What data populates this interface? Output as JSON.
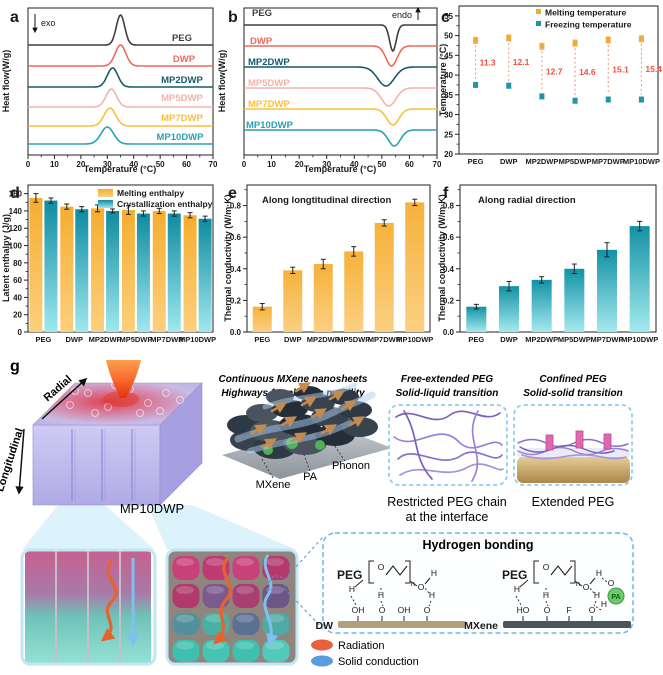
{
  "figure": {
    "letters": {
      "a": "a",
      "b": "b",
      "c": "c",
      "d": "d",
      "e": "e",
      "f": "f",
      "g": "g"
    }
  },
  "samples": [
    "PEG",
    "DWP",
    "MP2DWP",
    "MP5DWP",
    "MP7DWP",
    "MP10DWP"
  ],
  "sample_colors": {
    "PEG": "#3f3f3f",
    "DWP": "#ee6a58",
    "MP2DWP": "#175a6c",
    "MP5DWP": "#f5b2aa",
    "MP7DWP": "#f9bf3f",
    "MP10DWP": "#28a2b0"
  },
  "chart_data": [
    {
      "id": "a",
      "type": "line",
      "xlabel": "Temperature (°C)",
      "ylabel": "Heat flow(W/g)",
      "xlim": [
        0,
        70
      ],
      "x_ticks": [
        0,
        10,
        20,
        30,
        40,
        50,
        60,
        70
      ],
      "annotation": "exo",
      "annotation_arrow": "down",
      "peak_direction": "up",
      "note": "stacked DSC crystallization curves, exothermic peaks",
      "series": [
        {
          "name": "PEG",
          "color": "#3f3f3f",
          "peak_c": 35
        },
        {
          "name": "DWP",
          "color": "#ee6a58",
          "peak_c": 35
        },
        {
          "name": "MP2DWP",
          "color": "#175a6c",
          "peak_c": 32
        },
        {
          "name": "MP5DWP",
          "color": "#f5b2aa",
          "peak_c": 31.5
        },
        {
          "name": "MP7DWP",
          "color": "#f9bf3f",
          "peak_c": 31
        },
        {
          "name": "MP10DWP",
          "color": "#28a2b0",
          "peak_c": 30
        }
      ]
    },
    {
      "id": "b",
      "type": "line",
      "xlabel": "Temperature (°C)",
      "ylabel": "Heat flow(W/g)",
      "xlim": [
        0,
        70
      ],
      "x_ticks": [
        0,
        10,
        20,
        30,
        40,
        50,
        60,
        70
      ],
      "annotation": "endo",
      "annotation_arrow": "up",
      "peak_direction": "down",
      "note": "stacked DSC melting curves, endothermic dips",
      "series": [
        {
          "name": "PEG",
          "color": "#3f3f3f",
          "peak_c": 54
        },
        {
          "name": "DWP",
          "color": "#ee6a58",
          "peak_c": 53.5
        },
        {
          "name": "MP2DWP",
          "color": "#175a6c",
          "peak_c": 51.5
        },
        {
          "name": "MP5DWP",
          "color": "#f5b2aa",
          "peak_c": 52.5
        },
        {
          "name": "MP7DWP",
          "color": "#f9bf3f",
          "peak_c": 54
        },
        {
          "name": "MP10DWP",
          "color": "#28a2b0",
          "peak_c": 54.5
        }
      ]
    },
    {
      "id": "c",
      "type": "scatter",
      "ylabel": "Temperature (°C)",
      "ylim": [
        20,
        57.5
      ],
      "y_ticks": [
        20,
        25,
        30,
        35,
        40,
        45,
        50,
        55
      ],
      "categories": [
        "PEG",
        "DWP",
        "MP2DWP",
        "MP5DWP",
        "MP7DWP",
        "MP10DWP"
      ],
      "series": [
        {
          "name": "Melting temperature",
          "color": "#f2a93b",
          "values": [
            48.8,
            49.4,
            47.3,
            48.1,
            48.9,
            49.2
          ],
          "err": 0.7
        },
        {
          "name": "Freezing temperature",
          "color": "#1f95a8",
          "values": [
            37.5,
            37.3,
            34.6,
            33.5,
            33.8,
            33.8
          ],
          "err": 0.6
        }
      ],
      "supercooling_labels": [
        "11.3",
        "12.1",
        "12.7",
        "14.6",
        "15.1",
        "15.4"
      ],
      "supercooling_color": "#f2513d",
      "legend_position": "top"
    },
    {
      "id": "d",
      "type": "bar",
      "ylabel": "Latent enthalpy (J/g)",
      "ylim": [
        0,
        170
      ],
      "y_ticks": [
        0,
        20,
        40,
        60,
        80,
        100,
        120,
        140,
        160
      ],
      "categories": [
        "PEG",
        "DWP",
        "MP2DWP",
        "MP5DWP",
        "MP7DWP",
        "MP10DWP"
      ],
      "series": [
        {
          "name": "Melting enthalpy",
          "gradient": [
            "#f6ad2f",
            "#fcd07e"
          ],
          "values": [
            155,
            145,
            143,
            141,
            140,
            135
          ],
          "err": [
            5,
            3,
            4,
            5,
            3,
            3
          ]
        },
        {
          "name": "Crystallization enthalpy",
          "gradient": [
            "#0f8ba0",
            "#9fe8ee"
          ],
          "values": [
            152,
            142,
            140,
            137,
            137,
            131
          ],
          "err": [
            3,
            3,
            2,
            3,
            3,
            3
          ]
        }
      ],
      "legend_position": "top-right"
    },
    {
      "id": "e",
      "type": "bar",
      "ylabel": "Thermal conductivity (W/m·K)",
      "ylim": [
        0,
        0.93
      ],
      "y_ticks": [
        0.0,
        0.2,
        0.4,
        0.6,
        0.8
      ],
      "tick_format": "1dp",
      "annotation": "Along longtitudinal direction",
      "categories": [
        "PEG",
        "DWP",
        "MP2DWP",
        "MP5DWP",
        "MP7DWP",
        "MP10DWP"
      ],
      "series": [
        {
          "name": "Longitudinal thermal conductivity",
          "gradient": [
            "#f6b13a",
            "#fbd083"
          ],
          "values": [
            0.16,
            0.39,
            0.43,
            0.51,
            0.69,
            0.82
          ],
          "err": [
            0.02,
            0.02,
            0.03,
            0.03,
            0.02,
            0.02
          ]
        }
      ]
    },
    {
      "id": "f",
      "type": "bar",
      "ylabel": "Thermal conductivity (W/m·K)",
      "ylim": [
        0,
        0.93
      ],
      "y_ticks": [
        0.0,
        0.2,
        0.4,
        0.6,
        0.8
      ],
      "tick_format": "1dp",
      "annotation": "Along radial direction",
      "categories": [
        "PEG",
        "DWP",
        "MP2DWP",
        "MP5DWP",
        "MP7DWP",
        "MP10DWP"
      ],
      "series": [
        {
          "name": "Radial thermal conductivity",
          "gradient": [
            "#1292a6",
            "#a5e9ef"
          ],
          "values": [
            0.16,
            0.29,
            0.33,
            0.4,
            0.52,
            0.67
          ],
          "err": [
            0.015,
            0.03,
            0.02,
            0.03,
            0.045,
            0.03
          ]
        }
      ]
    }
  ],
  "schematic": {
    "radial_label": "Radial",
    "longitudinal_label": "Longitudinal",
    "block_label": "MP10DWP",
    "mxene_title_1": "Continuous MXene nanosheets",
    "mxene_title_2": "Highways for phonon mobility",
    "mxene_label": "MXene",
    "pa_label": "PA",
    "phonon_label": "Phonon",
    "free_peg_title_1": "Free-extended PEG",
    "free_peg_title_2": "Solid-liquid transition",
    "confined_peg_title_1": "Confined PEG",
    "confined_peg_title_2": "Solid-solid transition",
    "free_peg_caption_1": "Restricted PEG chain",
    "free_peg_caption_2": "at the interface",
    "confined_peg_caption": "Extended PEG",
    "hbond_title": "Hydrogen bonding",
    "atoms": {
      "O": "O",
      "H": "H",
      "n": "n"
    },
    "hbond_left": {
      "polymer": "PEG",
      "surface": "DW",
      "surface_atoms": [
        "OH",
        "O",
        "OH",
        "O"
      ],
      "bar_color": "#b3a078"
    },
    "hbond_right": {
      "polymer": "PEG",
      "surface": "MXene",
      "surface_atoms": [
        "HO",
        "O",
        "F",
        "O"
      ],
      "bar_color": "#4a5560",
      "pa": "PA"
    },
    "legend_radiation": "Radiation",
    "legend_solid": "Solid conduction",
    "legend_radiation_color": "#e8603c",
    "legend_solid_color": "#5b9be0"
  }
}
